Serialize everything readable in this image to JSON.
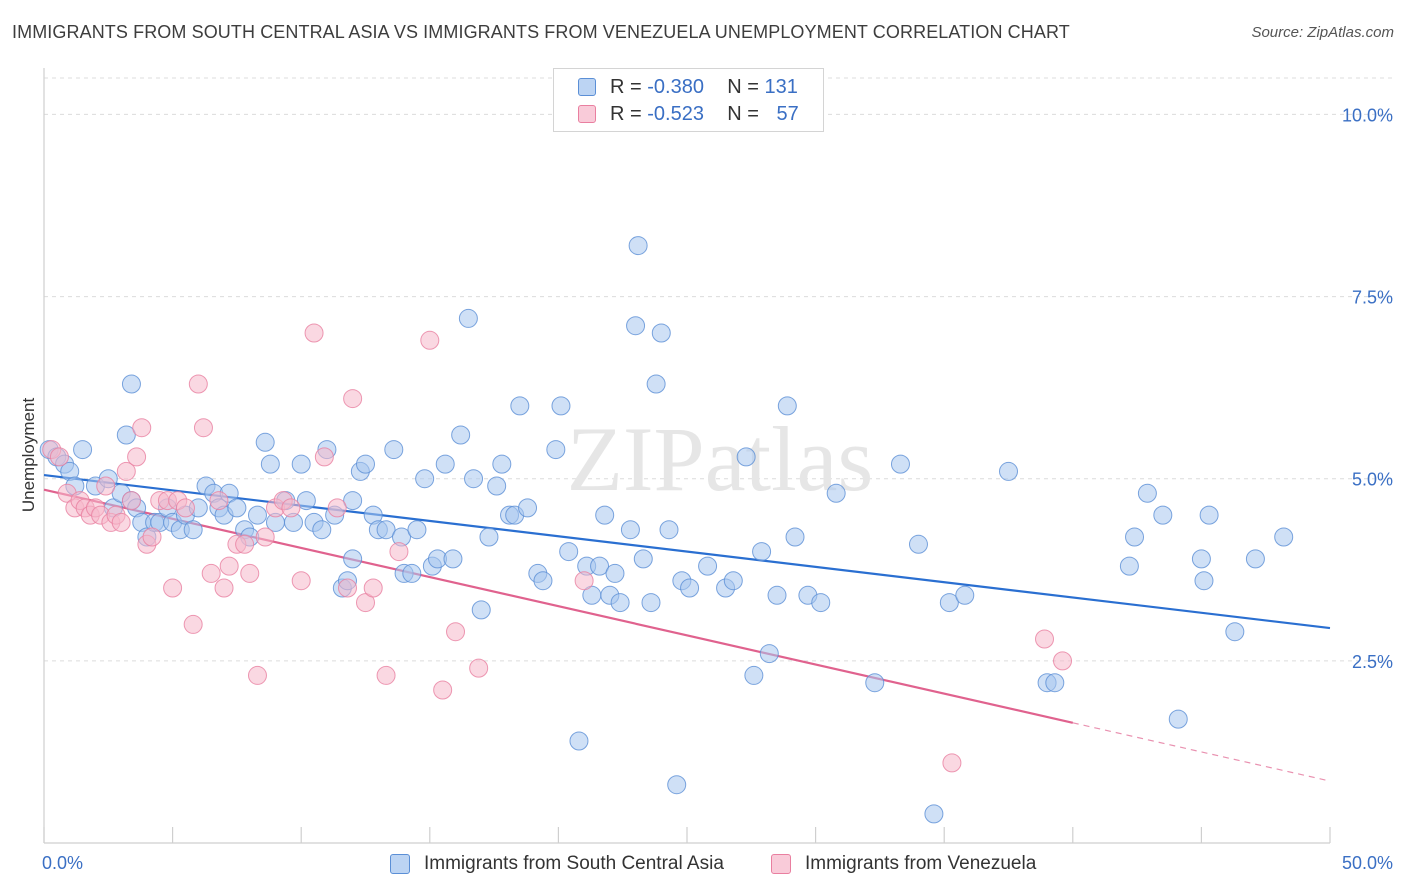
{
  "title": "IMMIGRANTS FROM SOUTH CENTRAL ASIA VS IMMIGRANTS FROM VENEZUELA UNEMPLOYMENT CORRELATION CHART",
  "source": "Source: ZipAtlas.com",
  "watermark": "ZIPatlas",
  "legend": {
    "r_label": "R =",
    "n_label": "N =",
    "series": [
      {
        "r": "-0.380",
        "n": "131"
      },
      {
        "r": "-0.523",
        "n": "57"
      }
    ]
  },
  "colors": {
    "blue_fill": "#a8c6ef",
    "blue_stroke": "#5b8fd6",
    "blue_line": "#2a6fd1",
    "pink_fill": "#f6b8cb",
    "pink_stroke": "#e97fa0",
    "pink_line": "#e0628e",
    "axis_label": "#3a6fc4"
  },
  "chart_data": {
    "type": "scatter",
    "title": "IMMIGRANTS FROM SOUTH CENTRAL ASIA VS IMMIGRANTS FROM VENEZUELA UNEMPLOYMENT CORRELATION CHART",
    "xlabel": "",
    "ylabel": "Unemployment",
    "xlim": [
      0,
      50
    ],
    "ylim": [
      0,
      10.5
    ],
    "x_tick_labels": [
      "0.0%",
      "50.0%"
    ],
    "y_ticks": [
      2.5,
      5.0,
      7.5,
      10.0
    ],
    "y_tick_labels": [
      "2.5%",
      "5.0%",
      "7.5%",
      "10.0%"
    ],
    "grid": true,
    "series": [
      {
        "name": "Immigrants from South Central Asia",
        "trend": {
          "x": [
            0,
            50
          ],
          "y": [
            5.05,
            2.95
          ],
          "solid_to": 50
        },
        "points": [
          [
            0.2,
            5.4
          ],
          [
            0.5,
            5.3
          ],
          [
            0.8,
            5.2
          ],
          [
            1.0,
            5.1
          ],
          [
            1.5,
            5.4
          ],
          [
            1.2,
            4.9
          ],
          [
            2.0,
            4.9
          ],
          [
            2.5,
            5.0
          ],
          [
            2.7,
            4.6
          ],
          [
            3.0,
            4.8
          ],
          [
            3.2,
            5.6
          ],
          [
            3.4,
            4.7
          ],
          [
            3.6,
            4.6
          ],
          [
            3.4,
            6.3
          ],
          [
            3.8,
            4.4
          ],
          [
            4.0,
            4.2
          ],
          [
            4.3,
            4.4
          ],
          [
            4.5,
            4.4
          ],
          [
            4.8,
            4.6
          ],
          [
            5.0,
            4.4
          ],
          [
            5.3,
            4.3
          ],
          [
            5.5,
            4.5
          ],
          [
            5.8,
            4.3
          ],
          [
            6.0,
            4.6
          ],
          [
            6.3,
            4.9
          ],
          [
            6.6,
            4.8
          ],
          [
            6.8,
            4.6
          ],
          [
            7.0,
            4.5
          ],
          [
            7.2,
            4.8
          ],
          [
            7.5,
            4.6
          ],
          [
            7.8,
            4.3
          ],
          [
            8.0,
            4.2
          ],
          [
            8.3,
            4.5
          ],
          [
            8.6,
            5.5
          ],
          [
            8.8,
            5.2
          ],
          [
            9.0,
            4.4
          ],
          [
            9.4,
            4.7
          ],
          [
            9.7,
            4.4
          ],
          [
            10.0,
            5.2
          ],
          [
            10.2,
            4.7
          ],
          [
            10.5,
            4.4
          ],
          [
            10.8,
            4.3
          ],
          [
            11.0,
            5.4
          ],
          [
            11.3,
            4.5
          ],
          [
            11.6,
            3.5
          ],
          [
            11.8,
            3.6
          ],
          [
            12.0,
            4.7
          ],
          [
            12.3,
            5.1
          ],
          [
            12.5,
            5.2
          ],
          [
            12.8,
            4.5
          ],
          [
            13.0,
            4.3
          ],
          [
            13.3,
            4.3
          ],
          [
            13.6,
            5.4
          ],
          [
            13.9,
            4.2
          ],
          [
            14.0,
            3.7
          ],
          [
            14.3,
            3.7
          ],
          [
            14.5,
            4.3
          ],
          [
            14.8,
            5.0
          ],
          [
            15.1,
            3.8
          ],
          [
            15.3,
            3.9
          ],
          [
            15.6,
            5.2
          ],
          [
            15.9,
            3.9
          ],
          [
            16.2,
            5.6
          ],
          [
            16.5,
            7.2
          ],
          [
            16.7,
            5.0
          ],
          [
            17.0,
            3.2
          ],
          [
            17.3,
            4.2
          ],
          [
            17.6,
            4.9
          ],
          [
            17.8,
            5.2
          ],
          [
            18.1,
            4.5
          ],
          [
            18.3,
            4.5
          ],
          [
            18.5,
            6.0
          ],
          [
            18.8,
            4.6
          ],
          [
            19.2,
            3.7
          ],
          [
            19.4,
            3.6
          ],
          [
            19.9,
            5.4
          ],
          [
            20.1,
            6.0
          ],
          [
            20.4,
            4.0
          ],
          [
            20.8,
            1.4
          ],
          [
            21.1,
            3.8
          ],
          [
            21.3,
            3.4
          ],
          [
            21.6,
            3.8
          ],
          [
            21.8,
            4.5
          ],
          [
            22.0,
            3.4
          ],
          [
            22.2,
            3.7
          ],
          [
            22.4,
            3.3
          ],
          [
            22.8,
            4.3
          ],
          [
            23.0,
            7.1
          ],
          [
            23.3,
            3.9
          ],
          [
            23.6,
            3.3
          ],
          [
            23.8,
            6.3
          ],
          [
            24.0,
            7.0
          ],
          [
            24.3,
            4.3
          ],
          [
            24.6,
            0.8
          ],
          [
            24.8,
            3.6
          ],
          [
            25.1,
            3.5
          ],
          [
            25.8,
            3.8
          ],
          [
            26.5,
            3.5
          ],
          [
            26.8,
            3.6
          ],
          [
            27.3,
            5.3
          ],
          [
            27.6,
            2.3
          ],
          [
            27.9,
            4.0
          ],
          [
            28.2,
            2.6
          ],
          [
            28.5,
            3.4
          ],
          [
            28.9,
            6.0
          ],
          [
            29.2,
            4.2
          ],
          [
            29.7,
            3.4
          ],
          [
            30.2,
            3.3
          ],
          [
            30.8,
            4.8
          ],
          [
            32.3,
            2.2
          ],
          [
            33.3,
            5.2
          ],
          [
            34.0,
            4.1
          ],
          [
            34.6,
            0.4
          ],
          [
            35.2,
            3.3
          ],
          [
            35.8,
            3.4
          ],
          [
            37.5,
            5.1
          ],
          [
            39.0,
            2.2
          ],
          [
            39.3,
            2.2
          ],
          [
            42.2,
            3.8
          ],
          [
            42.4,
            4.2
          ],
          [
            42.9,
            4.8
          ],
          [
            43.5,
            4.5
          ],
          [
            44.1,
            1.7
          ],
          [
            45.0,
            3.9
          ],
          [
            45.1,
            3.6
          ],
          [
            45.3,
            4.5
          ],
          [
            46.3,
            2.9
          ],
          [
            47.1,
            3.9
          ],
          [
            48.2,
            4.2
          ],
          [
            23.1,
            8.2
          ],
          [
            12.0,
            3.9
          ]
        ]
      },
      {
        "name": "Immigrants from Venezuela",
        "trend": {
          "x": [
            0,
            50
          ],
          "y": [
            4.85,
            0.85
          ],
          "solid_to": 40
        },
        "points": [
          [
            0.3,
            5.4
          ],
          [
            0.6,
            5.3
          ],
          [
            0.9,
            4.8
          ],
          [
            1.2,
            4.6
          ],
          [
            1.4,
            4.7
          ],
          [
            1.6,
            4.6
          ],
          [
            1.8,
            4.5
          ],
          [
            2.0,
            4.6
          ],
          [
            2.2,
            4.5
          ],
          [
            2.4,
            4.9
          ],
          [
            2.6,
            4.4
          ],
          [
            2.8,
            4.5
          ],
          [
            3.0,
            4.4
          ],
          [
            3.2,
            5.1
          ],
          [
            3.4,
            4.7
          ],
          [
            3.6,
            5.3
          ],
          [
            3.8,
            5.7
          ],
          [
            4.0,
            4.1
          ],
          [
            4.2,
            4.2
          ],
          [
            4.5,
            4.7
          ],
          [
            4.8,
            4.7
          ],
          [
            5.0,
            3.5
          ],
          [
            5.2,
            4.7
          ],
          [
            5.5,
            4.6
          ],
          [
            5.8,
            3.0
          ],
          [
            6.0,
            6.3
          ],
          [
            6.2,
            5.7
          ],
          [
            6.5,
            3.7
          ],
          [
            6.8,
            4.7
          ],
          [
            7.0,
            3.5
          ],
          [
            7.2,
            3.8
          ],
          [
            7.5,
            4.1
          ],
          [
            7.8,
            4.1
          ],
          [
            8.0,
            3.7
          ],
          [
            8.3,
            2.3
          ],
          [
            8.6,
            4.2
          ],
          [
            9.0,
            4.6
          ],
          [
            9.3,
            4.7
          ],
          [
            9.6,
            4.6
          ],
          [
            10.0,
            3.6
          ],
          [
            10.5,
            7.0
          ],
          [
            10.9,
            5.3
          ],
          [
            11.4,
            4.6
          ],
          [
            11.8,
            3.5
          ],
          [
            12.0,
            6.1
          ],
          [
            12.5,
            3.3
          ],
          [
            12.8,
            3.5
          ],
          [
            13.3,
            2.3
          ],
          [
            13.8,
            4.0
          ],
          [
            15.0,
            6.9
          ],
          [
            15.5,
            2.1
          ],
          [
            16.0,
            2.9
          ],
          [
            16.9,
            2.4
          ],
          [
            21.0,
            3.6
          ],
          [
            35.3,
            1.1
          ],
          [
            38.9,
            2.8
          ],
          [
            39.6,
            2.5
          ]
        ]
      }
    ]
  },
  "bottom_legend": {
    "items": [
      "Immigrants from South Central Asia",
      "Immigrants from Venezuela"
    ]
  }
}
